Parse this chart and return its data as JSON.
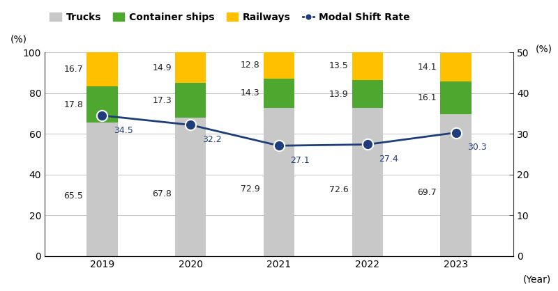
{
  "years": [
    2019,
    2020,
    2021,
    2022,
    2023
  ],
  "trucks": [
    65.5,
    67.8,
    72.9,
    72.6,
    69.7
  ],
  "container_ships": [
    17.8,
    17.3,
    14.3,
    13.9,
    16.1
  ],
  "railways": [
    16.7,
    14.9,
    12.8,
    13.5,
    14.1
  ],
  "modal_shift_rate": [
    34.5,
    32.2,
    27.1,
    27.4,
    30.3
  ],
  "bar_width": 0.35,
  "trucks_color": "#c8c8c8",
  "container_ships_color": "#4ea72e",
  "railways_color": "#ffc000",
  "line_color": "#1f3d7a",
  "marker_color": "#1f3d7a",
  "marker_edge_color": "#ffffff",
  "left_ylim": [
    0,
    100
  ],
  "right_ylim": [
    0,
    50
  ],
  "left_yticks": [
    0,
    20,
    40,
    60,
    80,
    100
  ],
  "right_yticks": [
    0,
    10,
    20,
    30,
    40,
    50
  ],
  "left_ylabel": "(%)",
  "right_ylabel": "(%)",
  "xlabel": "(Year)",
  "legend_labels": [
    "Trucks",
    "Container ships",
    "Railways",
    "Modal Shift Rate"
  ],
  "figsize": [
    8.0,
    4.18
  ],
  "dpi": 100,
  "label_fontsize": 9,
  "tick_fontsize": 10,
  "legend_fontsize": 10
}
